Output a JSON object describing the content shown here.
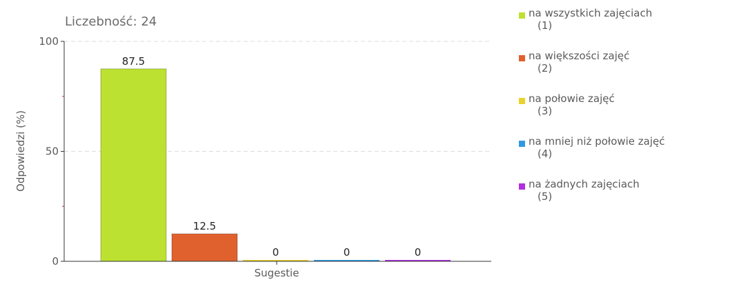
{
  "chart_data": {
    "type": "bar",
    "title": "Liczebność: 24",
    "ylabel": "Odpowiedzi (%)",
    "xlabel": "Sugestie",
    "ylim": [
      0,
      100
    ],
    "yticks": [
      0,
      50,
      100
    ],
    "grid": true,
    "legend_position": "right",
    "series": [
      {
        "name": "na wszystkich zajęciach",
        "code": "(1)",
        "value": 87.5,
        "color": "#bde130"
      },
      {
        "name": "na większości zajęć",
        "code": "(2)",
        "value": 12.5,
        "color": "#e0612d"
      },
      {
        "name": "na połowie zajęć",
        "code": "(3)",
        "value": 0,
        "color": "#e8d22c"
      },
      {
        "name": "na mniej niż połowie zajęć",
        "code": "(4)",
        "value": 0,
        "color": "#2f9ae0"
      },
      {
        "name": "na żadnych zajęciach",
        "code": "(5)",
        "value": 0,
        "color": "#b12fe0"
      }
    ]
  }
}
